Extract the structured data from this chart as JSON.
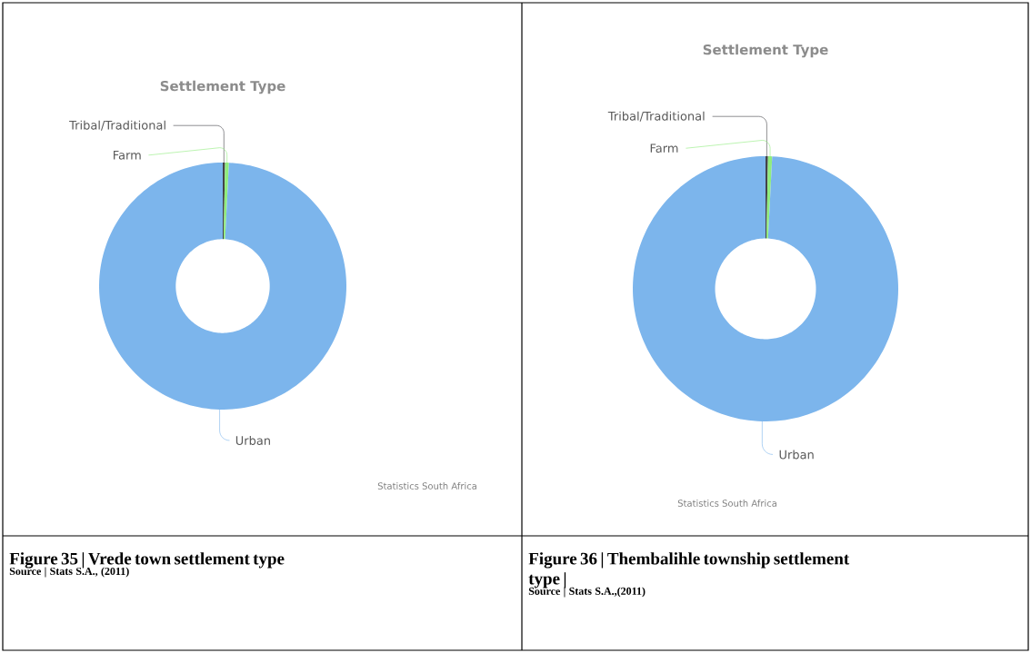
{
  "chart_data": [
    {
      "type": "donut",
      "title": "Settlement Type",
      "categories": [
        "Tribal/Traditional",
        "Farm",
        "Urban"
      ],
      "values": [
        0.3,
        0.5,
        99.2
      ],
      "colors": [
        "#434348",
        "#90ed7d",
        "#7cb5ec"
      ],
      "annotations": [
        "Statistics South Africa",
        "Figure 35 | Vrede town settlement type",
        "Source | Stats S.A., (2011)"
      ]
    },
    {
      "type": "donut",
      "title": "Settlement Type",
      "categories": [
        "Tribal/Traditional",
        "Farm",
        "Urban"
      ],
      "values": [
        0.3,
        0.5,
        99.2
      ],
      "colors": [
        "#434348",
        "#90ed7d",
        "#7cb5ec"
      ],
      "annotations": [
        "Statistics South Africa",
        "Figure 36 | Thembalihle township settlement type |",
        "Source | Stats S.A.,(2011)"
      ]
    }
  ]
}
